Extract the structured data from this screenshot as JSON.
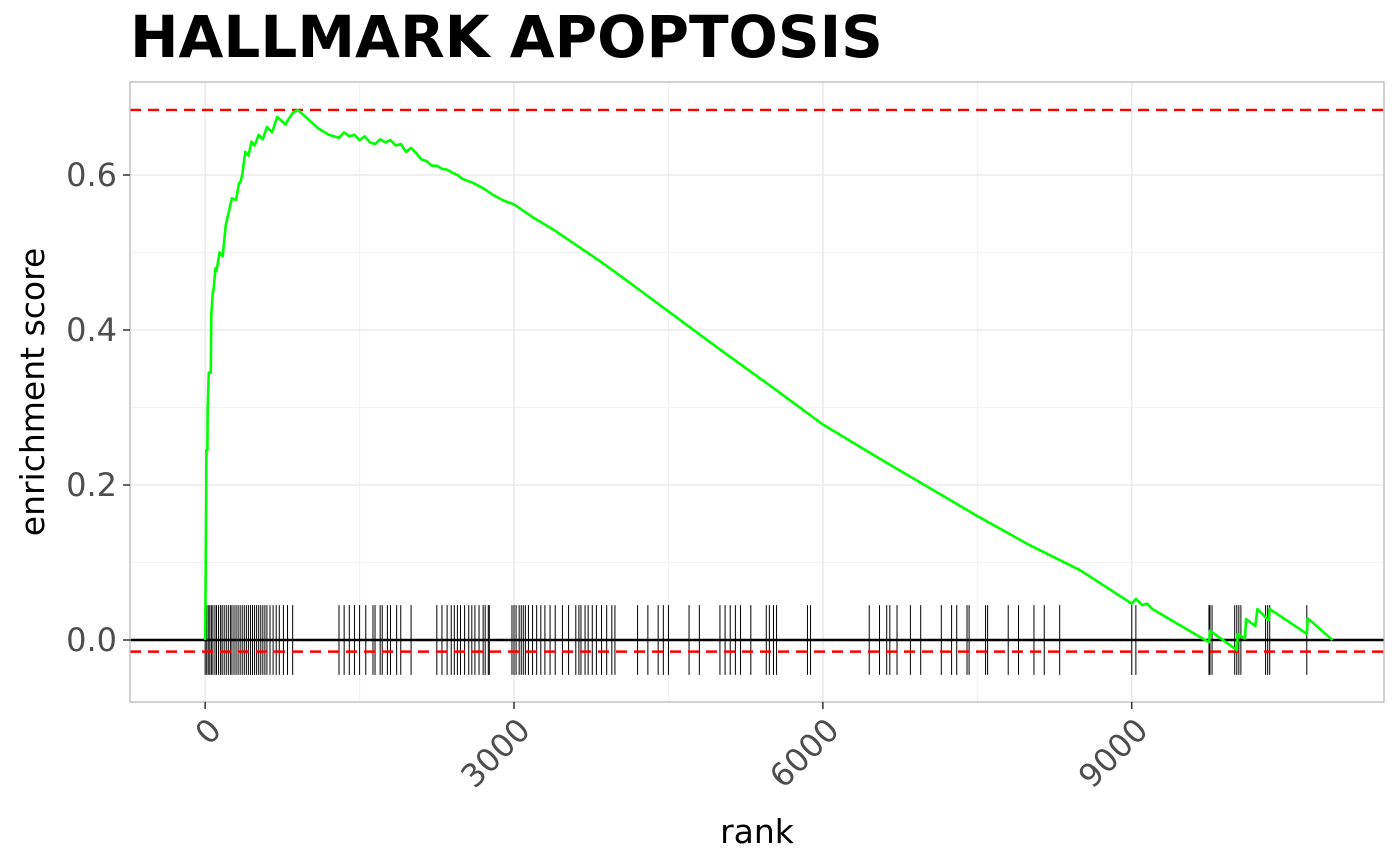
{
  "chart_data": {
    "type": "line",
    "title": "HALLMARK APOPTOSIS",
    "xlabel": "rank",
    "ylabel": "enrichment score",
    "xlim": [
      -730,
      11450
    ],
    "ylim": [
      -0.08,
      0.72
    ],
    "x_ticks": [
      0,
      3000,
      6000,
      9000
    ],
    "x_tick_labels": [
      "0",
      "3000",
      "6000",
      "9000"
    ],
    "y_ticks": [
      0.0,
      0.2,
      0.4,
      0.6
    ],
    "y_tick_labels": [
      "0.0",
      "0.2",
      "0.4",
      "0.6"
    ],
    "grid": true,
    "legend": "none",
    "colors": {
      "curve": "#00ff00",
      "threshold": "#ff0000",
      "zero_line": "#000000",
      "gene_ticks": "#000000",
      "grid": "#ebebeb",
      "panel_border": "#b3b3b3"
    },
    "reference_lines": {
      "max_es": 0.684,
      "min_es": -0.015,
      "zero": 0.0
    },
    "gene_tick_range": [
      -0.045,
      0.045
    ],
    "series": [
      {
        "x": [
          0,
          10,
          12,
          22,
          25,
          35,
          40,
          55,
          60,
          75,
          80,
          100,
          110,
          140,
          170,
          200,
          260,
          300,
          330,
          340,
          360,
          390,
          420,
          450,
          480,
          520,
          560,
          600,
          650,
          700,
          780,
          800,
          850,
          900,
          1000,
          1100,
          1200,
          1300,
          1350,
          1400,
          1450,
          1500,
          1550,
          1600,
          1650,
          1700,
          1750,
          1800,
          1850,
          1900,
          1950,
          2000,
          2050,
          2100,
          2150,
          2200,
          2250,
          2300,
          2350,
          2400,
          2450,
          2500,
          2600,
          2700,
          2800,
          2900,
          3000,
          3100,
          3200,
          3400,
          3600,
          3800,
          4000,
          4500,
          5000,
          5500,
          6000,
          6500,
          7000,
          7500,
          8000,
          8500,
          9000,
          9040,
          9100,
          9150,
          9200,
          9750,
          9760,
          10020,
          10030,
          10100,
          10110,
          10200,
          10220,
          10330,
          10340,
          10700,
          10710,
          10950
        ],
        "y": [
          0.0,
          0.18,
          0.245,
          0.245,
          0.3,
          0.345,
          0.345,
          0.345,
          0.42,
          0.45,
          0.45,
          0.48,
          0.476,
          0.5,
          0.495,
          0.535,
          0.57,
          0.568,
          0.59,
          0.59,
          0.6,
          0.63,
          0.625,
          0.643,
          0.638,
          0.652,
          0.646,
          0.662,
          0.655,
          0.675,
          0.665,
          0.67,
          0.68,
          0.684,
          0.672,
          0.66,
          0.652,
          0.648,
          0.655,
          0.65,
          0.652,
          0.645,
          0.65,
          0.642,
          0.64,
          0.646,
          0.642,
          0.645,
          0.638,
          0.64,
          0.63,
          0.635,
          0.628,
          0.62,
          0.618,
          0.612,
          0.612,
          0.608,
          0.607,
          0.603,
          0.6,
          0.595,
          0.59,
          0.583,
          0.574,
          0.567,
          0.562,
          0.553,
          0.544,
          0.528,
          0.51,
          0.492,
          0.473,
          0.424,
          0.375,
          0.327,
          0.278,
          0.238,
          0.199,
          0.16,
          0.123,
          0.09,
          0.047,
          0.053,
          0.045,
          0.047,
          0.04,
          -0.003,
          0.012,
          -0.013,
          0.008,
          0.002,
          0.027,
          0.018,
          0.04,
          0.025,
          0.04,
          0.008,
          0.028,
          0.0
        ]
      }
    ],
    "gene_ranks": [
      0,
      15,
      30,
      45,
      60,
      75,
      95,
      110,
      130,
      150,
      165,
      185,
      205,
      225,
      245,
      260,
      280,
      300,
      320,
      340,
      360,
      380,
      400,
      420,
      440,
      460,
      480,
      500,
      520,
      540,
      560,
      580,
      600,
      630,
      660,
      690,
      720,
      760,
      800,
      850,
      1300,
      1350,
      1400,
      1450,
      1500,
      1560,
      1630,
      1650,
      1700,
      1720,
      1770,
      1800,
      1860,
      1900,
      2000,
      2250,
      2300,
      2350,
      2390,
      2420,
      2450,
      2480,
      2520,
      2560,
      2590,
      2620,
      2660,
      2700,
      2720,
      2750,
      2760,
      2980,
      3000,
      3020,
      3050,
      3070,
      3090,
      3110,
      3140,
      3180,
      3220,
      3260,
      3300,
      3350,
      3400,
      3470,
      3530,
      3600,
      3630,
      3650,
      3690,
      3720,
      3760,
      3800,
      3850,
      3900,
      3950,
      3980,
      4200,
      4300,
      4400,
      4450,
      4500,
      4700,
      4800,
      5000,
      5050,
      5100,
      5150,
      5200,
      5300,
      5450,
      5480,
      5520,
      5550,
      5850,
      5880,
      6450,
      6550,
      6620,
      6650,
      6720,
      6850,
      6950,
      7150,
      7250,
      7300,
      7400,
      7420,
      7580,
      7600,
      7800,
      7900,
      8050,
      8150,
      8300,
      9000,
      9040,
      9750,
      9760,
      9780,
      10000,
      10020,
      10040,
      10060,
      10300,
      10320,
      10340,
      10700
    ]
  }
}
